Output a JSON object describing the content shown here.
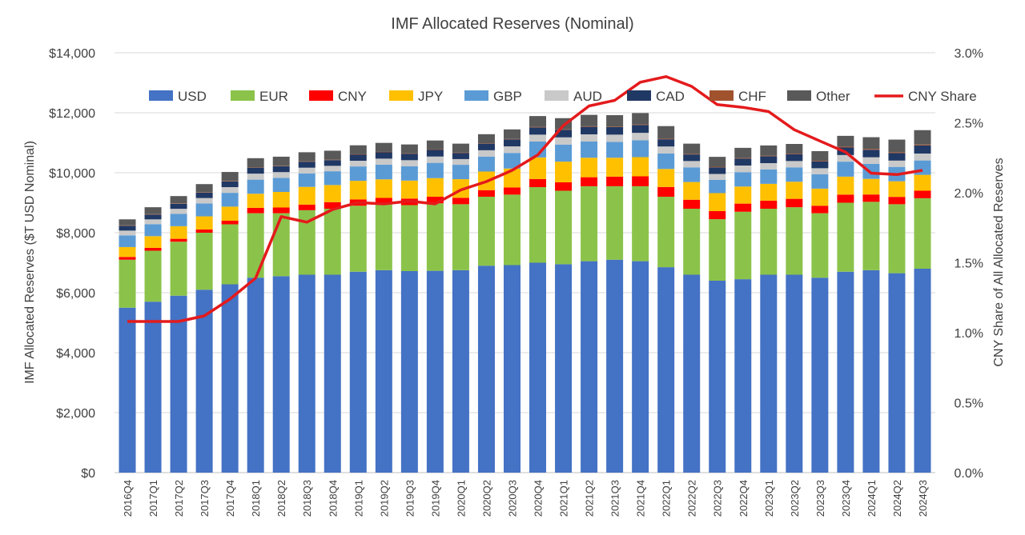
{
  "chart_data": {
    "type": "bar",
    "title": "IMF Allocated  Reserves (Nominal)",
    "ylabel": "IMF Allocated Reserves ($T USD Nominal)",
    "y2label": "CNY Share of All Allocated Reserves",
    "ylim": [
      0,
      14000
    ],
    "y2lim": [
      0,
      0.03
    ],
    "yticks": [
      "$0",
      "$2,000",
      "$4,000",
      "$6,000",
      "$8,000",
      "$10,000",
      "$12,000",
      "$14,000"
    ],
    "y2ticks": [
      "0.0%",
      "0.5%",
      "1.0%",
      "1.5%",
      "2.0%",
      "2.5%",
      "3.0%"
    ],
    "legend_position": "top",
    "grid": true,
    "stacked": true,
    "categories": [
      "2016Q4",
      "2017Q1",
      "2017Q2",
      "2017Q3",
      "2017Q4",
      "2018Q1",
      "2018Q2",
      "2018Q3",
      "2018Q4",
      "2019Q1",
      "2019Q2",
      "2019Q3",
      "2019Q4",
      "2020Q1",
      "2020Q2",
      "2020Q3",
      "2020Q4",
      "2021Q1",
      "2021Q2",
      "2021Q3",
      "2021Q4",
      "2022Q1",
      "2022Q2",
      "2022Q3",
      "2022Q4",
      "2023Q1",
      "2023Q2",
      "2023Q3",
      "2023Q4",
      "2024Q1",
      "2024Q2",
      "2024Q3"
    ],
    "series": [
      {
        "name": "USD",
        "color": "#4472C4",
        "values": [
          5500,
          5700,
          5900,
          6100,
          6280,
          6500,
          6550,
          6600,
          6600,
          6700,
          6750,
          6720,
          6730,
          6750,
          6900,
          6920,
          7000,
          6950,
          7050,
          7100,
          7050,
          6850,
          6600,
          6400,
          6450,
          6600,
          6600,
          6500,
          6700,
          6750,
          6650,
          6800
        ]
      },
      {
        "name": "EUR",
        "color": "#8BC34A",
        "values": [
          1600,
          1700,
          1800,
          1900,
          2000,
          2150,
          2100,
          2150,
          2200,
          2200,
          2200,
          2200,
          2250,
          2200,
          2300,
          2350,
          2520,
          2450,
          2500,
          2450,
          2500,
          2350,
          2200,
          2050,
          2250,
          2200,
          2250,
          2150,
          2300,
          2280,
          2300,
          2350
        ]
      },
      {
        "name": "CNY",
        "color": "#FF0000",
        "values": [
          91,
          95,
          97,
          106,
          120,
          180,
          190,
          188,
          220,
          210,
          210,
          218,
          220,
          215,
          220,
          240,
          270,
          280,
          300,
          320,
          330,
          325,
          300,
          270,
          270,
          270,
          280,
          250,
          270,
          245,
          245,
          250
        ]
      },
      {
        "name": "JPY",
        "color": "#FFC000",
        "values": [
          330,
          390,
          420,
          440,
          470,
          470,
          520,
          590,
          570,
          620,
          620,
          600,
          620,
          620,
          620,
          630,
          720,
          690,
          650,
          630,
          640,
          600,
          590,
          600,
          570,
          560,
          570,
          570,
          600,
          520,
          520,
          530
        ]
      },
      {
        "name": "GBP",
        "color": "#5B9BD5",
        "values": [
          390,
          400,
          410,
          430,
          460,
          470,
          470,
          450,
          460,
          480,
          490,
          480,
          510,
          480,
          500,
          520,
          530,
          570,
          540,
          530,
          560,
          520,
          490,
          440,
          480,
          480,
          480,
          480,
          500,
          500,
          480,
          480
        ]
      },
      {
        "name": "AUD",
        "color": "#C9C9C9",
        "values": [
          160,
          160,
          170,
          180,
          190,
          200,
          190,
          190,
          180,
          190,
          200,
          200,
          210,
          190,
          210,
          220,
          230,
          240,
          240,
          240,
          250,
          230,
          210,
          200,
          220,
          210,
          210,
          200,
          220,
          220,
          210,
          230
        ]
      },
      {
        "name": "CAD",
        "color": "#203864",
        "values": [
          160,
          160,
          170,
          180,
          190,
          200,
          200,
          200,
          190,
          200,
          210,
          210,
          220,
          200,
          220,
          230,
          240,
          250,
          250,
          250,
          260,
          240,
          220,
          220,
          230,
          230,
          230,
          230,
          250,
          250,
          250,
          270
        ]
      },
      {
        "name": "CHF",
        "color": "#A0522D",
        "values": [
          15,
          15,
          15,
          15,
          15,
          15,
          15,
          15,
          15,
          15,
          15,
          15,
          15,
          15,
          15,
          15,
          20,
          20,
          20,
          20,
          20,
          20,
          20,
          20,
          20,
          20,
          20,
          20,
          30,
          30,
          30,
          30
        ]
      },
      {
        "name": "Other",
        "color": "#595959",
        "values": [
          200,
          230,
          240,
          270,
          300,
          300,
          300,
          300,
          300,
          300,
          300,
          300,
          300,
          300,
          300,
          320,
          360,
          370,
          380,
          380,
          380,
          420,
          340,
          330,
          340,
          340,
          320,
          320,
          360,
          390,
          420,
          480
        ]
      }
    ],
    "line_series": {
      "name": "CNY Share",
      "color": "#E41A1C",
      "axis": "right",
      "values": [
        0.0108,
        0.0108,
        0.0108,
        0.0112,
        0.0124,
        0.0139,
        0.0183,
        0.0179,
        0.0188,
        0.0193,
        0.0192,
        0.0194,
        0.0192,
        0.0202,
        0.0208,
        0.0216,
        0.0227,
        0.0248,
        0.0262,
        0.0266,
        0.0279,
        0.0283,
        0.0276,
        0.0263,
        0.0261,
        0.0258,
        0.0245,
        0.0237,
        0.0229,
        0.0214,
        0.0213,
        0.0216
      ]
    }
  }
}
